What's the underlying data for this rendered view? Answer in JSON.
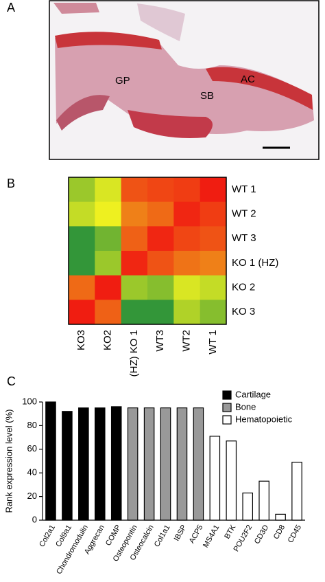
{
  "chart_data": [
    {
      "type": "image",
      "panel": "A",
      "annotations": [
        "GP",
        "SB",
        "AC"
      ]
    },
    {
      "type": "heatmap",
      "panel": "B",
      "rows": [
        "WT 1",
        "WT 2",
        "WT 3",
        "KO 1 (HZ)",
        "KO 2",
        "KO 3"
      ],
      "columns": [
        "KO3",
        "KO2",
        "(HZ) KO 1",
        "WT3",
        "WT2",
        "WT 1"
      ],
      "values": [
        [
          0.3,
          0.45,
          0.85,
          0.88,
          0.9,
          0.97
        ],
        [
          0.4,
          0.5,
          0.75,
          0.8,
          0.95,
          0.9
        ],
        [
          0.05,
          0.2,
          0.82,
          0.95,
          0.88,
          0.85
        ],
        [
          0.05,
          0.3,
          0.95,
          0.85,
          0.78,
          0.75
        ],
        [
          0.8,
          0.97,
          0.3,
          0.25,
          0.45,
          0.4
        ],
        [
          0.97,
          0.82,
          0.05,
          0.05,
          0.35,
          0.25
        ]
      ],
      "colorscale": [
        "#1e8c3c",
        "#eef020",
        "#f01010"
      ]
    },
    {
      "type": "bar",
      "panel": "C",
      "y_label": "Rank expression level (%)",
      "categories": [
        "Col2a1",
        "Col9a1",
        "Chondromodulin",
        "Aggrecan",
        "COMP",
        "Osteopontin",
        "Osteocalcin",
        "Col1a1",
        "IBSP",
        "ACP5",
        "MS4A1",
        "BTK",
        "POU2F2",
        "CD3D",
        "CD8",
        "CD45"
      ],
      "series": [
        {
          "name": "Cartilage",
          "color": "#000000",
          "values": [
            100,
            92,
            95,
            95,
            96,
            null,
            null,
            null,
            null,
            null,
            null,
            null,
            null,
            null,
            null,
            null
          ]
        },
        {
          "name": "Bone",
          "color": "#999999",
          "values": [
            null,
            null,
            null,
            null,
            null,
            95,
            95,
            95,
            95,
            95,
            null,
            null,
            null,
            null,
            null,
            null
          ]
        },
        {
          "name": "Hematopoietic",
          "color": "#ffffff",
          "values": [
            null,
            null,
            null,
            null,
            null,
            null,
            null,
            null,
            null,
            null,
            71,
            67,
            23,
            33,
            5,
            49
          ]
        }
      ],
      "edgecolor": "#000000",
      "ylim": [
        0,
        100
      ],
      "yticks": [
        0,
        20,
        40,
        60,
        80,
        100
      ],
      "legend": "upper right"
    }
  ]
}
